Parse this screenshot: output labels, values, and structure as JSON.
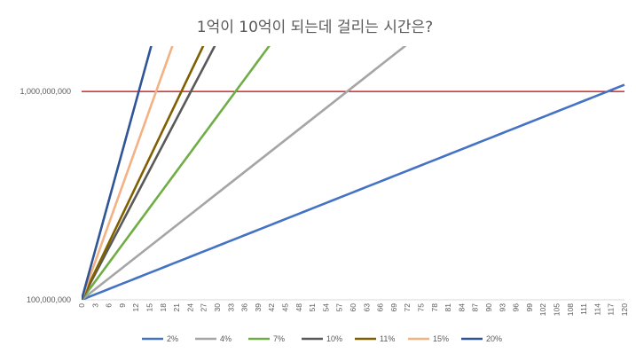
{
  "chart_data": {
    "type": "line",
    "title": "1억이 10억이 되는데 걸리는 시간은?",
    "xlabel": "",
    "ylabel": "",
    "y_scale": "log",
    "ylim": [
      100000000,
      1650000000
    ],
    "xlim": [
      0,
      120
    ],
    "x_tick_step": 3,
    "y_ticks": [
      {
        "value": 100000000,
        "label": "100,000,000"
      },
      {
        "value": 1000000000,
        "label": "1,000,000,000"
      }
    ],
    "reference_line": {
      "value": 1000000000,
      "color": "#c00000"
    },
    "legend_position": "bottom",
    "grid": false,
    "series": [
      {
        "name": "2%",
        "annual_rate": 0.02,
        "color": "#4472c4"
      },
      {
        "name": "4%",
        "annual_rate": 0.04,
        "color": "#a5a5a5"
      },
      {
        "name": "7%",
        "annual_rate": 0.07,
        "color": "#70ad47"
      },
      {
        "name": "10%",
        "annual_rate": 0.1,
        "color": "#595959"
      },
      {
        "name": "11%",
        "annual_rate": 0.11,
        "color": "#7f6000"
      },
      {
        "name": "15%",
        "annual_rate": 0.15,
        "color": "#f4b183"
      },
      {
        "name": "20%",
        "annual_rate": 0.2,
        "color": "#2f5597"
      }
    ],
    "start_value": 100000000
  }
}
